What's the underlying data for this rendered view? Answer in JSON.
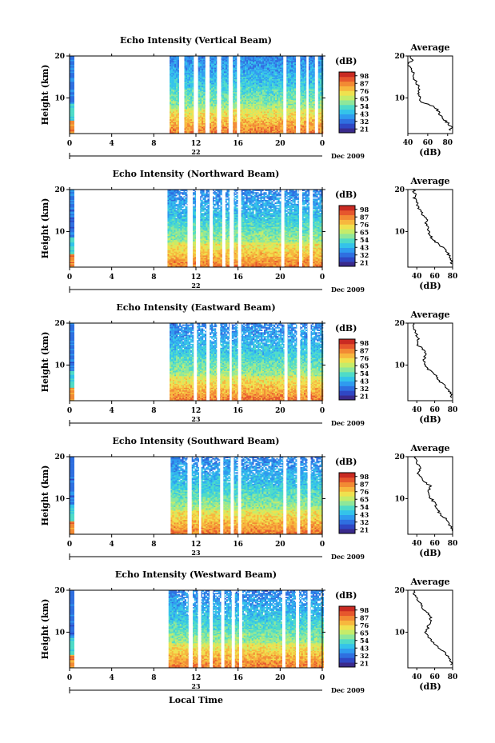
{
  "colors": [
    "#3a2a8c",
    "#2f47c4",
    "#2f6fe0",
    "#2f9bef",
    "#34c3ea",
    "#4fdbc8",
    "#8ee79a",
    "#c5ec6a",
    "#efe14f",
    "#f7b73e",
    "#f28a34",
    "#e6562d",
    "#c92a22"
  ],
  "colorbar": {
    "unit": "(dB)",
    "ticks": [
      "98",
      "87",
      "76",
      "65",
      "54",
      "43",
      "32",
      "21"
    ]
  },
  "date_label": "Dec 2009",
  "xlabel_bottom": "Local Time",
  "profile_title": "Average",
  "profile_xlabel": "(dB)",
  "chart_data": [
    {
      "type": "heatmap",
      "title": "Echo Intensity (Vertical Beam)",
      "ylabel": "Height (km)",
      "xlim": [
        0,
        24
      ],
      "ylim": [
        1.5,
        20
      ],
      "x_ticks": [
        "0",
        "4",
        "8",
        "12",
        "16",
        "20",
        "0"
      ],
      "y_ticks": [
        "20",
        "10"
      ],
      "day_label": "22",
      "data_start_hour": 9.5,
      "gaps": [
        [
          10.4,
          10.9
        ],
        [
          11.8,
          12.2
        ],
        [
          12.9,
          13.3
        ],
        [
          14.0,
          14.4
        ],
        [
          15.1,
          15.5
        ],
        [
          15.9,
          16.2
        ],
        [
          20.3,
          20.6
        ],
        [
          21.5,
          21.9
        ],
        [
          22.5,
          22.7
        ],
        [
          23.3,
          23.6
        ]
      ],
      "profile": {
        "type": "line",
        "xlim": [
          40,
          85
        ],
        "x_ticks": [
          "40",
          "60",
          "80"
        ],
        "y_ticks": [
          "20",
          "10"
        ],
        "height": [
          20,
          19,
          18,
          17,
          16,
          15,
          14,
          13,
          12,
          11,
          10,
          9,
          8,
          7,
          6,
          5,
          4,
          3,
          2
        ],
        "value": [
          42,
          44,
          40,
          43,
          45,
          44,
          48,
          50,
          52,
          50,
          52,
          54,
          66,
          70,
          72,
          76,
          80,
          84,
          82
        ]
      }
    },
    {
      "type": "heatmap",
      "title": "Echo Intensity (Northward Beam)",
      "ylabel": "Height (km)",
      "xlim": [
        0,
        24
      ],
      "ylim": [
        1.5,
        20
      ],
      "x_ticks": [
        "0",
        "4",
        "8",
        "12",
        "16",
        "20",
        "0"
      ],
      "y_ticks": [
        "20",
        "10"
      ],
      "day_label": "22",
      "data_start_hour": 9.3,
      "gaps": [
        [
          11.2,
          11.7
        ],
        [
          12.0,
          12.4
        ],
        [
          13.3,
          13.6
        ],
        [
          14.5,
          14.8
        ],
        [
          15.2,
          15.6
        ],
        [
          16.0,
          16.3
        ],
        [
          20.1,
          20.4
        ],
        [
          21.8,
          22.1
        ],
        [
          22.8,
          23.1
        ]
      ],
      "profile": {
        "type": "line",
        "xlim": [
          30,
          80
        ],
        "x_ticks": [
          "40",
          "60",
          "80"
        ],
        "y_ticks": [
          "20",
          "10"
        ],
        "height": [
          20,
          19,
          18,
          17,
          16,
          15,
          14,
          13,
          12,
          11,
          10,
          9,
          8,
          7,
          6,
          5,
          4,
          3,
          2
        ],
        "value": [
          36,
          38,
          37,
          40,
          41,
          44,
          47,
          52,
          50,
          52,
          53,
          55,
          58,
          64,
          70,
          74,
          77,
          79,
          78
        ]
      }
    },
    {
      "type": "heatmap",
      "title": "Echo Intensity (Eastward Beam)",
      "ylabel": "Height (km)",
      "xlim": [
        0,
        24
      ],
      "ylim": [
        1.5,
        20
      ],
      "x_ticks": [
        "0",
        "4",
        "8",
        "12",
        "16",
        "20",
        "0"
      ],
      "y_ticks": [
        "20",
        "10"
      ],
      "day_label": "23",
      "data_start_hour": 9.5,
      "gaps": [
        [
          11.8,
          12.1
        ],
        [
          13.0,
          13.3
        ],
        [
          14.0,
          14.3
        ],
        [
          15.2,
          15.4
        ],
        [
          16.0,
          16.3
        ],
        [
          20.4,
          20.7
        ],
        [
          21.6,
          21.9
        ],
        [
          22.6,
          22.9
        ]
      ],
      "profile": {
        "type": "line",
        "xlim": [
          30,
          80
        ],
        "x_ticks": [
          "40",
          "60",
          "80"
        ],
        "y_ticks": [
          "20",
          "10"
        ],
        "height": [
          20,
          19,
          18,
          17,
          16,
          15,
          14,
          13,
          12,
          11,
          10,
          9,
          8,
          7,
          6,
          5,
          4,
          3,
          2
        ],
        "value": [
          36,
          35,
          38,
          40,
          42,
          40,
          46,
          50,
          49,
          48,
          50,
          52,
          60,
          62,
          66,
          72,
          76,
          79,
          78
        ]
      }
    },
    {
      "type": "heatmap",
      "title": "Echo Intensity (Southward Beam)",
      "ylabel": "Height (km)",
      "xlim": [
        0,
        24
      ],
      "ylim": [
        1.5,
        20
      ],
      "x_ticks": [
        "0",
        "4",
        "8",
        "12",
        "16",
        "20",
        "0"
      ],
      "y_ticks": [
        "20",
        "10"
      ],
      "day_label": "23",
      "data_start_hour": 9.6,
      "gaps": [
        [
          11.2,
          11.6
        ],
        [
          12.3,
          12.5
        ],
        [
          14.3,
          14.6
        ],
        [
          15.3,
          15.6
        ],
        [
          16.0,
          16.3
        ],
        [
          20.3,
          20.6
        ],
        [
          21.6,
          21.9
        ],
        [
          22.6,
          22.9
        ]
      ],
      "profile": {
        "type": "line",
        "xlim": [
          30,
          80
        ],
        "x_ticks": [
          "40",
          "60",
          "80"
        ],
        "y_ticks": [
          "20",
          "10"
        ],
        "height": [
          20,
          19,
          18,
          17,
          16,
          15,
          14,
          13,
          12,
          11,
          10,
          9,
          8,
          7,
          6,
          5,
          4,
          3,
          2
        ],
        "value": [
          38,
          40,
          42,
          44,
          40,
          46,
          48,
          56,
          54,
          52,
          56,
          60,
          62,
          64,
          68,
          74,
          76,
          79,
          80
        ]
      }
    },
    {
      "type": "heatmap",
      "title": "Echo Intensity (Westward Beam)",
      "ylabel": "Height (km)",
      "xlim": [
        0,
        24
      ],
      "ylim": [
        1.5,
        20
      ],
      "x_ticks": [
        "0",
        "4",
        "8",
        "12",
        "16",
        "20",
        "0"
      ],
      "y_ticks": [
        "20",
        "10"
      ],
      "day_label": "23",
      "data_start_hour": 9.4,
      "gaps": [
        [
          11.3,
          11.7
        ],
        [
          12.2,
          12.5
        ],
        [
          13.3,
          13.6
        ],
        [
          14.4,
          14.7
        ],
        [
          15.4,
          15.7
        ],
        [
          16.1,
          16.4
        ],
        [
          20.2,
          20.5
        ],
        [
          21.5,
          21.8
        ],
        [
          22.6,
          22.9
        ]
      ],
      "profile": {
        "type": "line",
        "xlim": [
          30,
          80
        ],
        "x_ticks": [
          "40",
          "60",
          "80"
        ],
        "y_ticks": [
          "20",
          "10"
        ],
        "height": [
          20,
          19,
          18,
          17,
          16,
          15,
          14,
          13,
          12,
          11,
          10,
          9,
          8,
          7,
          6,
          5,
          4,
          3,
          2
        ],
        "value": [
          38,
          37,
          40,
          44,
          46,
          50,
          55,
          56,
          54,
          52,
          50,
          52,
          56,
          62,
          66,
          72,
          76,
          78,
          79
        ]
      }
    }
  ]
}
